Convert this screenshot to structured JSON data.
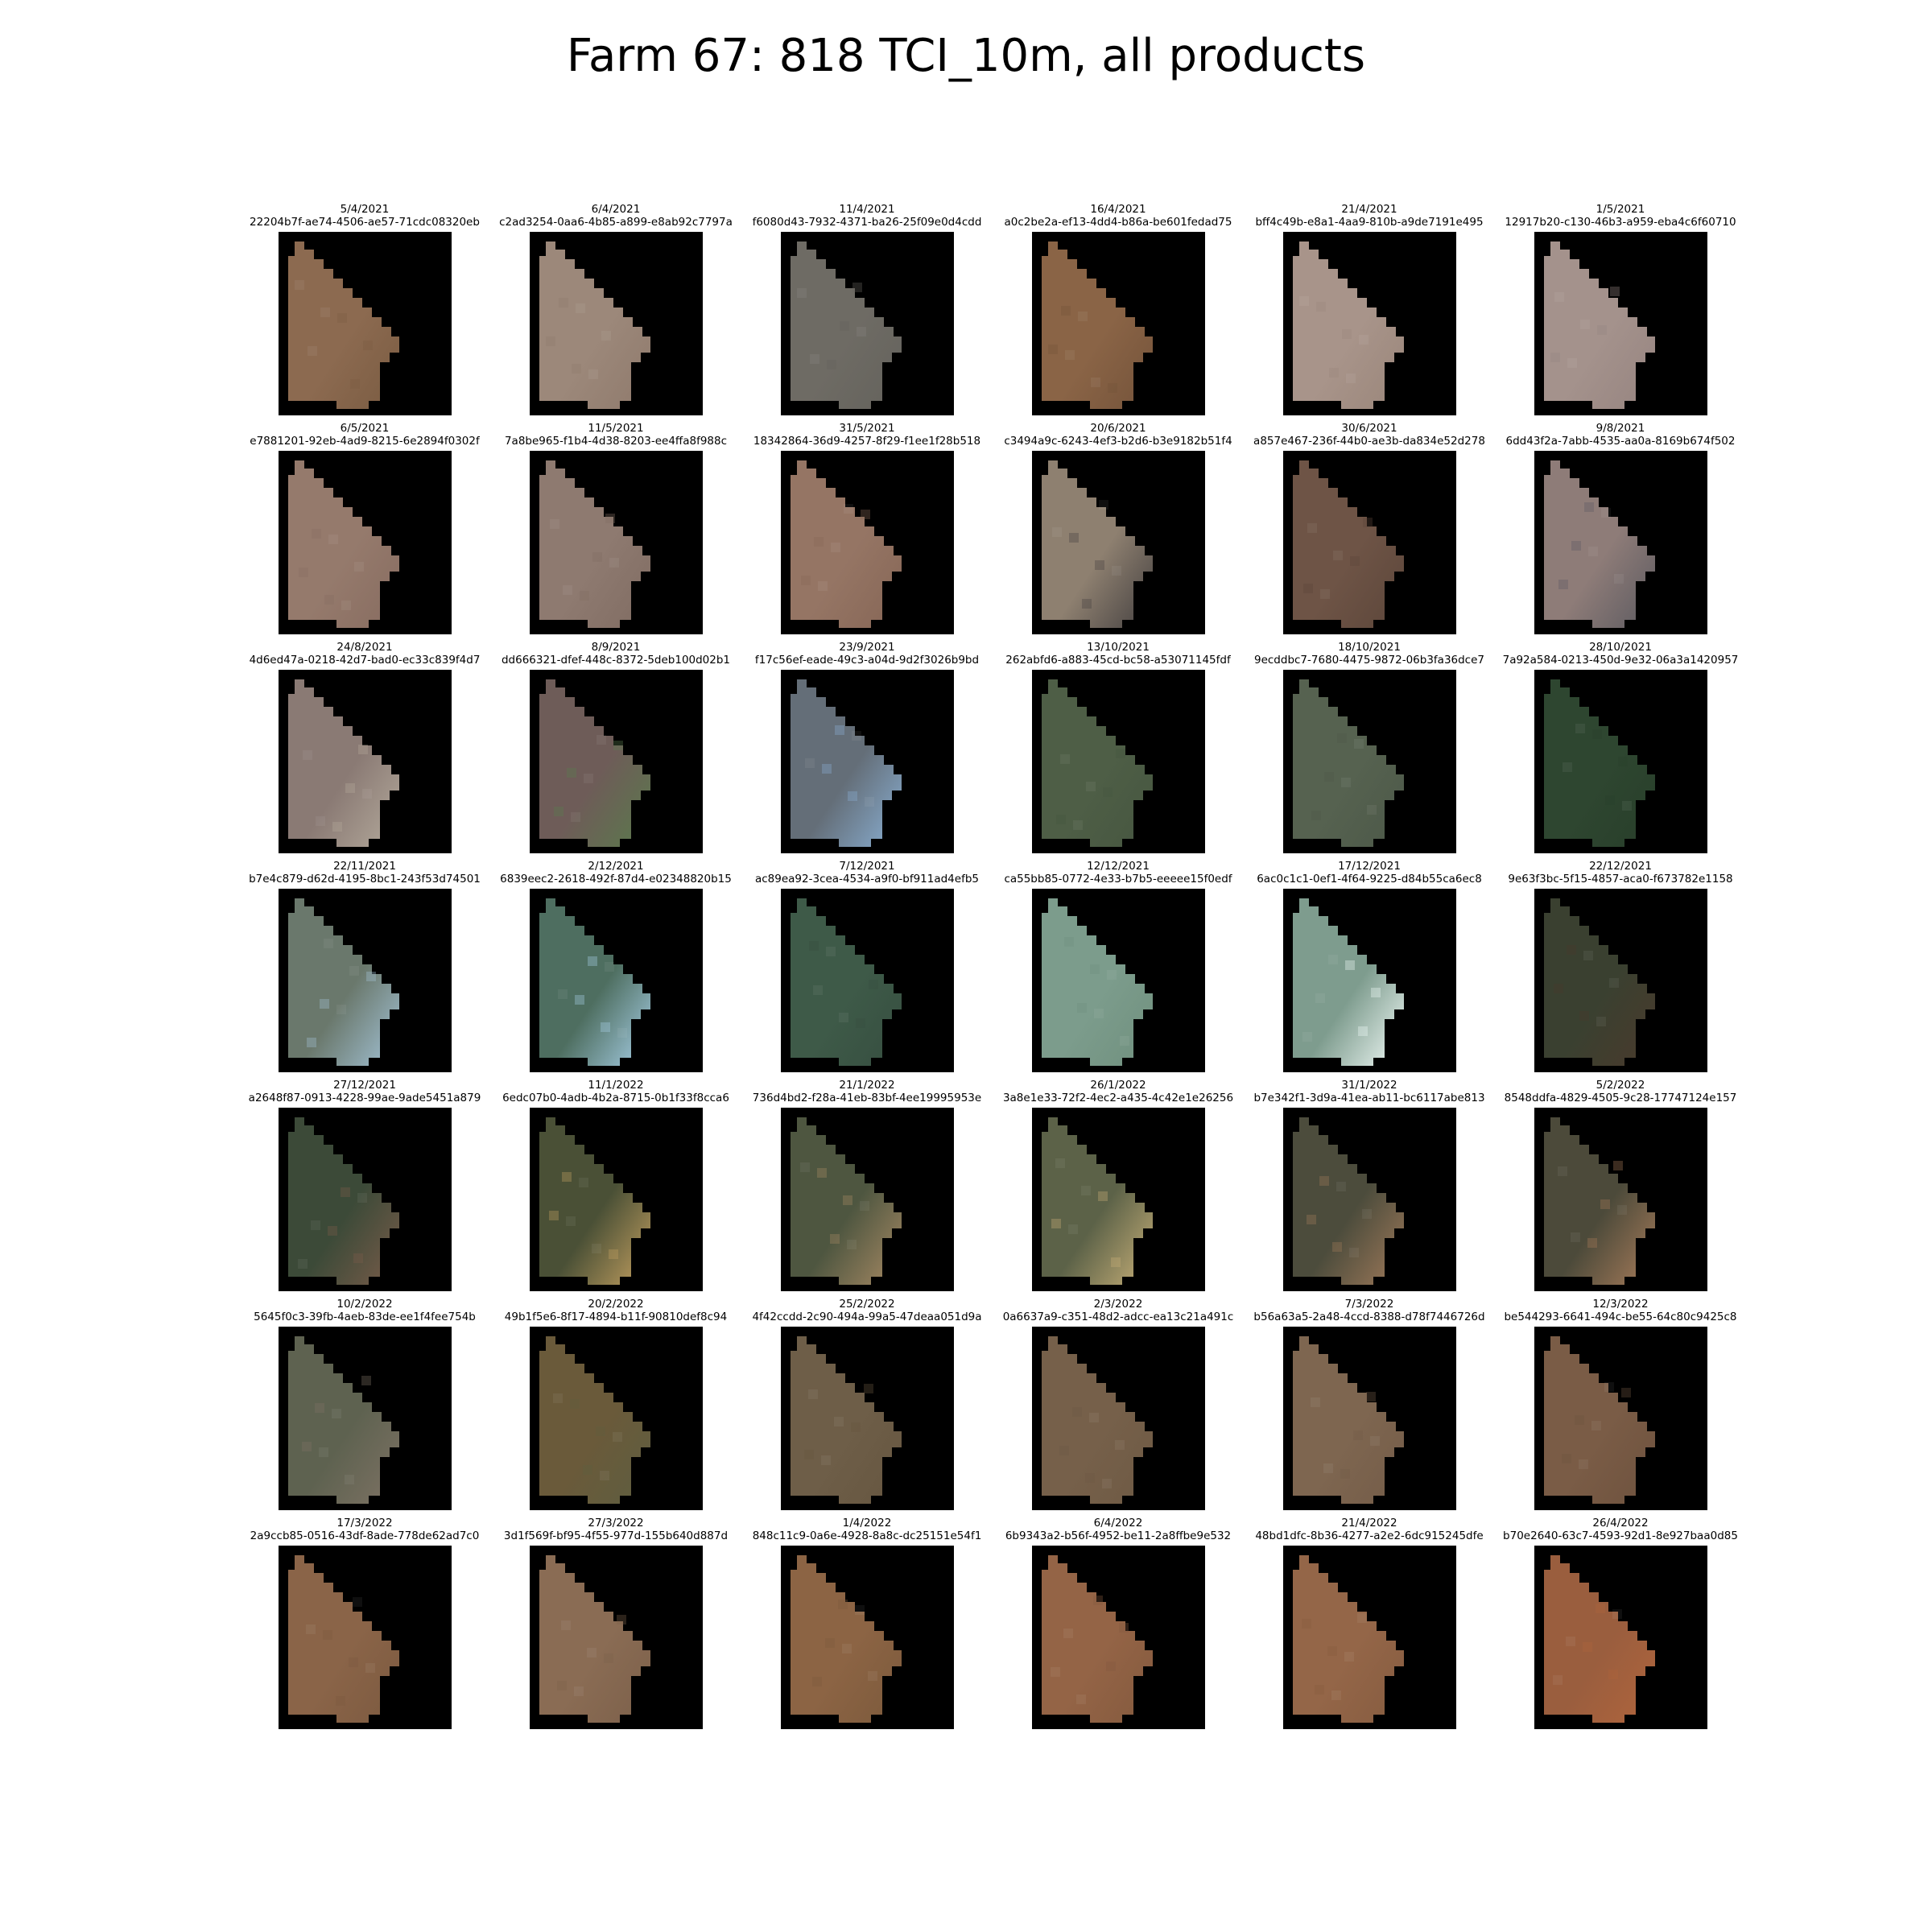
{
  "title": "Farm 67: 818 TCI_10m, all products",
  "tiles": [
    {
      "date": "5/4/2021",
      "id": "22204b7f-ae74-4506-ae57-71cdc08320eb",
      "color": "#8c6a50",
      "accent": "#7a5c42"
    },
    {
      "date": "6/4/2021",
      "id": "c2ad3254-0aa6-4b85-a899-e8ab92c7797a",
      "color": "#9c887a",
      "accent": "#8f7a6c"
    },
    {
      "date": "11/4/2021",
      "id": "f6080d43-7932-4371-ba26-25f09e0d4cdd",
      "color": "#6e6b64",
      "accent": "#64625c"
    },
    {
      "date": "16/4/2021",
      "id": "a0c2be2a-ef13-4dd4-b86a-be601fedad75",
      "color": "#8a6446",
      "accent": "#74533a"
    },
    {
      "date": "21/4/2021",
      "id": "bff4c49b-e8a1-4aa9-810b-a9de7191e495",
      "color": "#a8948a",
      "accent": "#9a867a"
    },
    {
      "date": "1/5/2021",
      "id": "12917b20-c130-46b3-a959-eba4c6f60710",
      "color": "#a4928c",
      "accent": "#968480"
    },
    {
      "date": "6/5/2021",
      "id": "e7881201-92eb-4ad9-8215-6e2894f0302f",
      "color": "#957a6c",
      "accent": "#876c60"
    },
    {
      "date": "11/5/2021",
      "id": "7a8be965-f1b4-4d38-8203-ee4ffa8f988c",
      "color": "#8e7a70",
      "accent": "#806c62"
    },
    {
      "date": "31/5/2021",
      "id": "18342864-36d9-4257-8f29-f1ee1f28b518",
      "color": "#957564",
      "accent": "#866656"
    },
    {
      "date": "20/6/2021",
      "id": "c3494a9c-6243-4ef3-b2d6-b3e9182b51f4",
      "color": "#8e8070",
      "accent": "#444040"
    },
    {
      "date": "30/6/2021",
      "id": "a857e467-236f-44b0-ae3b-da834e52d278",
      "color": "#6e5446",
      "accent": "#5c463a"
    },
    {
      "date": "9/8/2021",
      "id": "6dd43f2a-7abb-4535-aa0a-8169b674f502",
      "color": "#8e7c78",
      "accent": "#5c5a60"
    },
    {
      "date": "24/8/2021",
      "id": "4d6ed47a-0218-42d7-bad0-ec33c839f4d7",
      "color": "#8a7a74",
      "accent": "#b4aa9c"
    },
    {
      "date": "8/9/2021",
      "id": "dd666321-dfef-448c-8372-5deb100d02b1",
      "color": "#6e5c58",
      "accent": "#5a7a4c"
    },
    {
      "date": "23/9/2021",
      "id": "f17c56ef-eade-49c3-a04d-9d2f3026b9bd",
      "color": "#646e78",
      "accent": "#8ab0d4"
    },
    {
      "date": "13/10/2021",
      "id": "262abfd6-a883-45cd-bc58-a53071145fdf",
      "color": "#4e5e46",
      "accent": "#465640"
    },
    {
      "date": "18/10/2021",
      "id": "9ecddbc7-7680-4475-9872-06b3fa36dce7",
      "color": "#566250",
      "accent": "#4c5848"
    },
    {
      "date": "28/10/2021",
      "id": "7a92a584-0213-450d-9e32-06a3a1420957",
      "color": "#2e4630",
      "accent": "#283e2a"
    },
    {
      "date": "22/11/2021",
      "id": "b7e4c879-d62d-4195-8bc1-243f53d74501",
      "color": "#6a786c",
      "accent": "#a4c4d8"
    },
    {
      "date": "2/12/2021",
      "id": "6839eec2-2618-492f-87d4-e02348820b15",
      "color": "#4e6e60",
      "accent": "#a8d0e8"
    },
    {
      "date": "7/12/2021",
      "id": "ac89ea92-3cea-4534-a9f0-bf911ad4efb5",
      "color": "#3e5a48",
      "accent": "#364e40"
    },
    {
      "date": "12/12/2021",
      "id": "ca55bb85-0772-4e33-b7b5-eeeee15f0edf",
      "color": "#7c9c8c",
      "accent": "#70907e"
    },
    {
      "date": "17/12/2021",
      "id": "6ac0c1c1-0ef1-4f64-9225-d84b55ca6ec8",
      "color": "#7e9c8e",
      "accent": "#f2fbf8"
    },
    {
      "date": "22/12/2021",
      "id": "9e63f3bc-5f15-4857-aca0-f673782e1158",
      "color": "#3a4030",
      "accent": "#4a3a2c"
    },
    {
      "date": "27/12/2021",
      "id": "a2648f87-0913-4228-99ae-9ade5451a879",
      "color": "#3c4a38",
      "accent": "#7a5c4a"
    },
    {
      "date": "11/1/2022",
      "id": "6edc07b0-4adb-4b2a-8715-0b1f33f8cca6",
      "color": "#4a5036",
      "accent": "#c4a060"
    },
    {
      "date": "21/1/2022",
      "id": "736d4bd2-f28a-41eb-83bf-4ee19995953e",
      "color": "#4e5640",
      "accent": "#a88a64"
    },
    {
      "date": "26/1/2022",
      "id": "3a8e1e33-72f2-4ec2-a435-4c42e1e26256",
      "color": "#5c6248",
      "accent": "#c8b078"
    },
    {
      "date": "31/1/2022",
      "id": "b7e342f1-3d9a-41ea-ab11-bc6117abe813",
      "color": "#4c4c3c",
      "accent": "#a07a5a"
    },
    {
      "date": "5/2/2022",
      "id": "8548ddfa-4829-4505-9c28-17747124e157",
      "color": "#4c4a3a",
      "accent": "#a87c5a"
    },
    {
      "date": "10/2/2022",
      "id": "5645f0c3-39fb-4aeb-83de-ee1f4fee754b",
      "color": "#5e6250",
      "accent": "#7e7264"
    },
    {
      "date": "20/2/2022",
      "id": "49b1f5e6-8f17-4894-b11f-90810def8c94",
      "color": "#6a5a3a",
      "accent": "#5e5e40"
    },
    {
      "date": "25/2/2022",
      "id": "4f42ccdd-2c90-494a-99a5-47deaa051d9a",
      "color": "#6e5e48",
      "accent": "#665640"
    },
    {
      "date": "2/3/2022",
      "id": "0a6637a9-c351-48d2-adcc-ea13c21a491c",
      "color": "#76604a",
      "accent": "#6e5a44"
    },
    {
      "date": "7/3/2022",
      "id": "b56a63a5-2a48-4ccd-8388-d78f7446726d",
      "color": "#7e6650",
      "accent": "#745c48"
    },
    {
      "date": "12/3/2022",
      "id": "be544293-6641-494c-be55-64c80c9425c8",
      "color": "#7a5c46",
      "accent": "#6e523e"
    },
    {
      "date": "17/3/2022",
      "id": "2a9ccb85-0516-43df-8ade-778de62ad7c0",
      "color": "#8a6448",
      "accent": "#7c5a40"
    },
    {
      "date": "27/3/2022",
      "id": "3d1f569f-bf95-4f55-977d-155b640d887d",
      "color": "#8a6c54",
      "accent": "#7c604a"
    },
    {
      "date": "1/4/2022",
      "id": "848c11c9-0a6e-4928-8a8c-dc25151e54f1",
      "color": "#8c6444",
      "accent": "#7c5a3c"
    },
    {
      "date": "6/4/2022",
      "id": "6b9343a2-b56f-4952-be11-2a8ffbe9e532",
      "color": "#946446",
      "accent": "#845a3e"
    },
    {
      "date": "21/4/2022",
      "id": "48bd1dfc-8b36-4277-a2e2-6dc915245dfe",
      "color": "#946648",
      "accent": "#865c40"
    },
    {
      "date": "26/4/2022",
      "id": "b70e2640-63c7-4593-92d1-8e927baa0d85",
      "color": "#9a5e3e",
      "accent": "#b0643c"
    }
  ]
}
